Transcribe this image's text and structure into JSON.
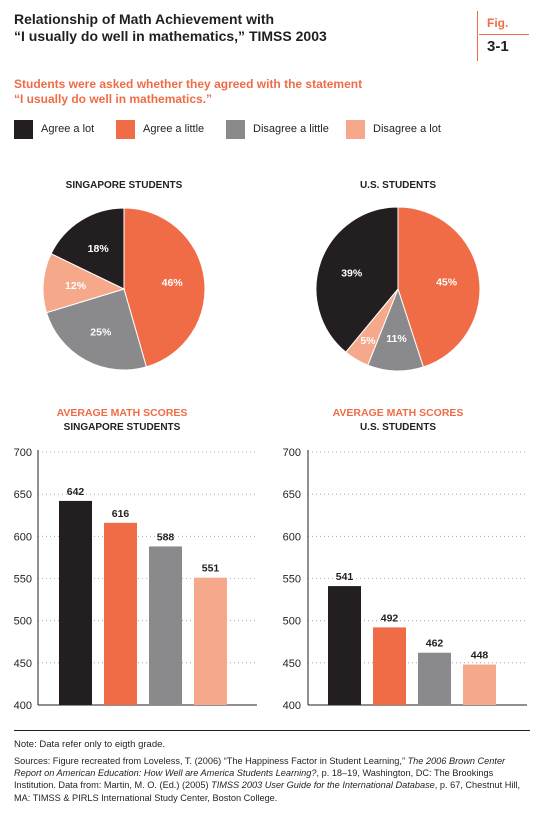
{
  "header": {
    "title_line1": "Relationship of Math Achievement with",
    "title_line2": "“I usually do well in mathematics,” TIMSS 2003",
    "fig_label": "Fig.",
    "fig_number": "3-1"
  },
  "subtitle": {
    "line1": "Students were asked whether they agreed with the statement",
    "line2": "“I usually do well in mathematics.”"
  },
  "legend": [
    {
      "label": "Agree a lot",
      "color": "#231f20"
    },
    {
      "label": "Agree a little",
      "color": "#ef6c47"
    },
    {
      "label": "Disagree a little",
      "color": "#8a8a8c"
    },
    {
      "label": "Disagree a lot",
      "color": "#f6a98a"
    }
  ],
  "chart_data": [
    {
      "type": "pie",
      "title": "SINGAPORE STUDENTS",
      "categories": [
        "Agree a lot",
        "Agree a little",
        "Disagree a little",
        "Disagree a lot"
      ],
      "values": [
        18,
        46,
        25,
        12
      ],
      "labels": [
        "18%",
        "46%",
        "25%",
        "12%"
      ],
      "colors": [
        "#231f20",
        "#ef6c47",
        "#8a8a8c",
        "#f6a98a"
      ]
    },
    {
      "type": "pie",
      "title": "U.S. STUDENTS",
      "categories": [
        "Agree a lot",
        "Agree a little",
        "Disagree a little",
        "Disagree a lot"
      ],
      "values": [
        39,
        45,
        11,
        5
      ],
      "labels": [
        "39%",
        "45%",
        "11%",
        "5%"
      ],
      "colors": [
        "#231f20",
        "#ef6c47",
        "#8a8a8c",
        "#f6a98a"
      ]
    },
    {
      "type": "bar",
      "title": "AVERAGE MATH SCORES",
      "subtitle": "SINGAPORE STUDENTS",
      "categories": [
        "Agree a lot",
        "Agree a little",
        "Disagree a little",
        "Disagree a lot"
      ],
      "values": [
        642,
        616,
        588,
        551
      ],
      "colors": [
        "#231f20",
        "#ef6c47",
        "#8a8a8c",
        "#f6a98a"
      ],
      "ylim": [
        400,
        700
      ],
      "yticks": [
        400,
        450,
        500,
        550,
        600,
        650,
        700
      ],
      "grid": "dotted horizontal"
    },
    {
      "type": "bar",
      "title": "AVERAGE MATH SCORES",
      "subtitle": "U.S. STUDENTS",
      "categories": [
        "Agree a lot",
        "Agree a little",
        "Disagree a little",
        "Disagree a lot"
      ],
      "values": [
        541,
        492,
        462,
        448
      ],
      "colors": [
        "#231f20",
        "#ef6c47",
        "#8a8a8c",
        "#f6a98a"
      ],
      "ylim": [
        400,
        700
      ],
      "yticks": [
        400,
        450,
        500,
        550,
        600,
        650,
        700
      ],
      "grid": "dotted horizontal"
    }
  ],
  "footer": {
    "note": "Note: Data refer only to eigth grade.",
    "sources_1": "Sources: Figure recreated from Loveless, T. (2006) “The Happiness Factor in Student Learning,” ",
    "sources_2": "The 2006 Brown Center Report on American Education: How Well are America Students Learning?",
    "sources_3": ", p. 18–19, Washington, DC: The Brookings Institution. Data from: Martin, M. O. (Ed.) (2005) ",
    "sources_4": "TIMSS 2003 User Guide for the International Database",
    "sources_5": ", p. 67, Chestnut Hill, MA: TIMSS & PIRLS International Study Center, Boston College."
  }
}
